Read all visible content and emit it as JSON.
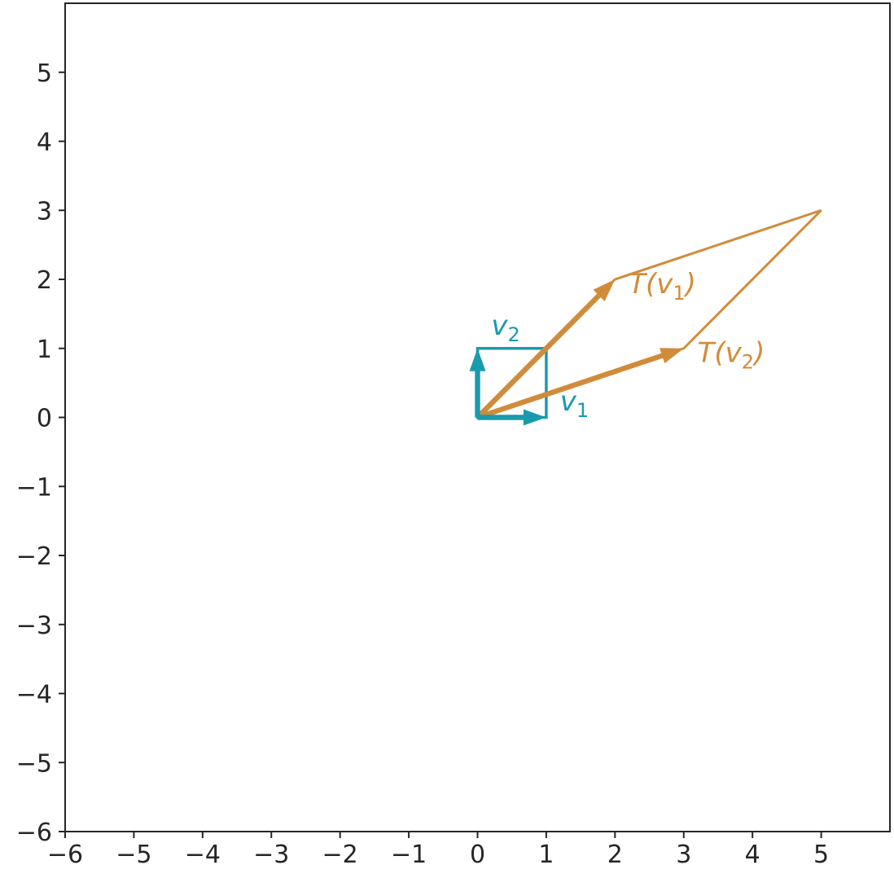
{
  "chart_data": {
    "type": "line",
    "title": "",
    "xlabel": "",
    "ylabel": "",
    "xlim": [
      -6,
      6
    ],
    "ylim": [
      -6,
      6
    ],
    "grid": false,
    "xticks": [
      "−6",
      "−5",
      "−4",
      "−3",
      "−2",
      "−1",
      "0",
      "1",
      "2",
      "3",
      "4",
      "5"
    ],
    "yticks": [
      "−6",
      "−5",
      "−4",
      "−3",
      "−2",
      "−1",
      "0",
      "1",
      "2",
      "3",
      "4",
      "5"
    ],
    "colors": {
      "original": "#1a9aad",
      "transformed": "#d08c3a",
      "axes": "#262626"
    },
    "unit_square": [
      [
        0,
        0
      ],
      [
        1,
        0
      ],
      [
        1,
        1
      ],
      [
        0,
        1
      ]
    ],
    "transformed_parallelogram": [
      [
        0,
        0
      ],
      [
        3,
        1
      ],
      [
        5,
        3
      ],
      [
        2,
        2
      ]
    ],
    "vectors": [
      {
        "id": "v1",
        "from": [
          0,
          0
        ],
        "to": [
          1,
          0
        ],
        "color": "original",
        "label_base": "v",
        "label_sub": "1",
        "label_anchor": [
          1.2,
          0.1
        ]
      },
      {
        "id": "v2",
        "from": [
          0,
          0
        ],
        "to": [
          0,
          1
        ],
        "color": "original",
        "label_base": "v",
        "label_sub": "2",
        "label_anchor": [
          0.2,
          1.2
        ]
      },
      {
        "id": "Tv1",
        "from": [
          0,
          0
        ],
        "to": [
          2,
          2
        ],
        "color": "transformed",
        "label_base": "T(v",
        "label_sub": "1",
        "label_close": ")",
        "label_anchor": [
          2.2,
          1.8
        ]
      },
      {
        "id": "Tv2",
        "from": [
          0,
          0
        ],
        "to": [
          3,
          1
        ],
        "color": "transformed",
        "label_base": "T(v",
        "label_sub": "2",
        "label_close": ")",
        "label_anchor": [
          3.2,
          0.8
        ]
      }
    ]
  }
}
